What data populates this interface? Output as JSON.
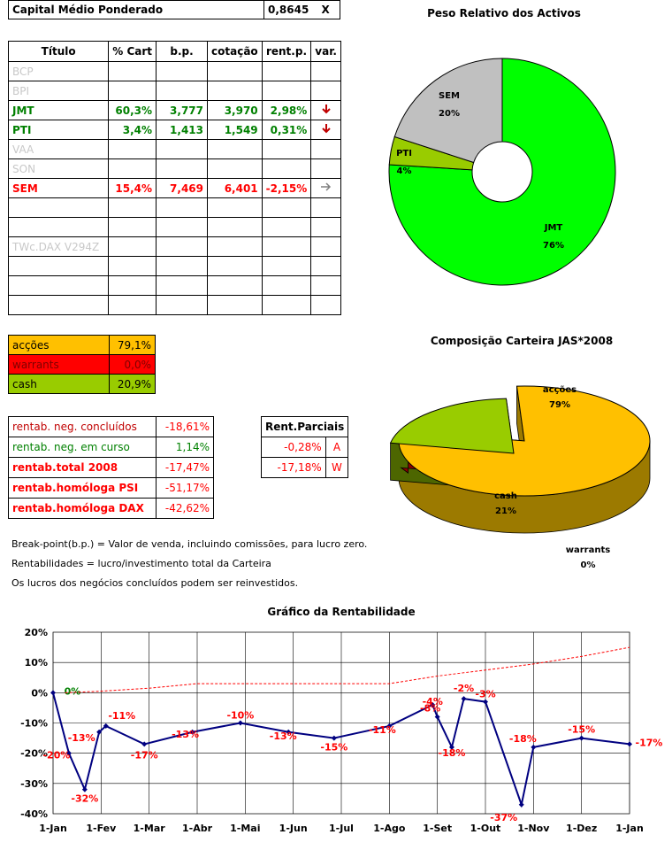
{
  "capital": {
    "label": "Capital Médio Ponderado",
    "value": "0,8645",
    "unit": "X"
  },
  "holdings": {
    "headers": [
      "Título",
      "% Cart",
      "b.p.",
      "cotação",
      "rent.p.",
      "var."
    ],
    "rows": [
      {
        "name": "BCP",
        "style": "grey",
        "cart": "",
        "bp": "",
        "cot": "",
        "rent": "",
        "var": ""
      },
      {
        "name": "BPI",
        "style": "grey",
        "cart": "",
        "bp": "",
        "cot": "",
        "rent": "",
        "var": ""
      },
      {
        "name": "JMT",
        "style": "green",
        "cart": "60,3%",
        "bp": "3,777",
        "cot": "3,970",
        "rent": "2,98%",
        "var": "down"
      },
      {
        "name": "PTI",
        "style": "green",
        "cart": "3,4%",
        "bp": "1,413",
        "cot": "1,549",
        "rent": "0,31%",
        "var": "down"
      },
      {
        "name": "VAA",
        "style": "grey",
        "cart": "",
        "bp": "",
        "cot": "",
        "rent": "",
        "var": ""
      },
      {
        "name": "SON",
        "style": "grey",
        "cart": "",
        "bp": "",
        "cot": "",
        "rent": "",
        "var": ""
      },
      {
        "name": "SEM",
        "style": "red",
        "cart": "15,4%",
        "bp": "7,469",
        "cot": "6,401",
        "rent": "-2,15%",
        "var": "right"
      },
      {
        "name": "",
        "style": "grey",
        "cart": "",
        "bp": "",
        "cot": "",
        "rent": "",
        "var": ""
      },
      {
        "name": "",
        "style": "grey",
        "cart": "",
        "bp": "",
        "cot": "",
        "rent": "",
        "var": ""
      },
      {
        "name": "TWc.DAX V294Z",
        "style": "grey",
        "cart": "",
        "bp": "",
        "cot": "",
        "rent": "",
        "var": ""
      },
      {
        "name": "",
        "style": "grey",
        "cart": "",
        "bp": "",
        "cot": "",
        "rent": "",
        "var": ""
      },
      {
        "name": "",
        "style": "grey",
        "cart": "",
        "bp": "",
        "cot": "",
        "rent": "",
        "var": ""
      },
      {
        "name": "",
        "style": "grey",
        "cart": "",
        "bp": "",
        "cot": "",
        "rent": "",
        "var": ""
      }
    ]
  },
  "composition": [
    {
      "label": "acções",
      "value": "79,1%",
      "bg": "#ffc000",
      "fg": "#000000"
    },
    {
      "label": "warrants",
      "value": "0,0%",
      "bg": "#ff0000",
      "fg": "#800000"
    },
    {
      "label": "cash",
      "value": "20,9%",
      "bg": "#99cc00",
      "fg": "#000000"
    }
  ],
  "returns": [
    {
      "label": "rentab. neg. concluídos",
      "value": "-18,61%",
      "label_color": "#c00000",
      "value_color": "#ff0000",
      "bold": false
    },
    {
      "label": "rentab. neg. em curso",
      "value": "1,14%",
      "label_color": "#008000",
      "value_color": "#008000",
      "bold": false
    },
    {
      "label": "rentab.total 2008",
      "value": "-17,47%",
      "label_color": "#ff0000",
      "value_color": "#ff0000",
      "bold": true
    },
    {
      "label": "rentab.homóloga PSI",
      "value": "-51,17%",
      "label_color": "#ff0000",
      "value_color": "#ff0000",
      "bold": true
    },
    {
      "label": "rentab.homóloga DAX",
      "value": "-42,62%",
      "label_color": "#ff0000",
      "value_color": "#ff0000",
      "bold": true
    }
  ],
  "partial": {
    "header": "Rent.Parciais",
    "rows": [
      {
        "value": "-0,28%",
        "code": "A"
      },
      {
        "value": "-17,18%",
        "code": "W"
      }
    ]
  },
  "notes": [
    "Break-point(b.p.) = Valor de venda, incluindo comissões, para lucro zero.",
    "Rentabilidades = lucro/investimento total da Carteira",
    "Os lucros dos negócios concluídos podem ser reinvestidos."
  ],
  "chart_data": [
    {
      "type": "pie",
      "style": "doughnut",
      "title": "Peso Relativo dos Activos",
      "labels": [
        "JMT",
        "PTI",
        "SEM"
      ],
      "values": [
        76,
        4,
        20
      ],
      "value_labels": [
        "76%",
        "4%",
        "20%"
      ],
      "colors": [
        "#00ff00",
        "#99cc00",
        "#c0c0c0"
      ]
    },
    {
      "type": "pie",
      "style": "3d",
      "title": "Composição Carteira JAS*2008",
      "labels": [
        "acções",
        "warrants",
        "cash"
      ],
      "values": [
        79,
        0,
        21
      ],
      "value_labels": [
        "79%",
        "0%",
        "21%"
      ],
      "colors": [
        "#ffc000",
        "#ff0000",
        "#99cc00"
      ]
    },
    {
      "type": "line",
      "title": "Gráfico da Rentabilidade",
      "ylim": [
        -40,
        20
      ],
      "yticks": [
        "20%",
        "10%",
        "0%",
        "-10%",
        "-20%",
        "-30%",
        "-40%"
      ],
      "xticks": [
        "1-Jan",
        "1-Fev",
        "1-Mar",
        "1-Abr",
        "1-Mai",
        "1-Jun",
        "1-Jul",
        "1-Ago",
        "1-Set",
        "1-Out",
        "1-Nov",
        "1-Dez",
        "1-Jan"
      ],
      "grid": true,
      "series": [
        {
          "color": "#000080",
          "points": [
            {
              "x": 0.0,
              "y": 0,
              "label": "0%"
            },
            {
              "x": 0.33,
              "y": -20,
              "label": "-20%"
            },
            {
              "x": 0.66,
              "y": -32,
              "label": "-32%"
            },
            {
              "x": 0.96,
              "y": -13,
              "label": "-13%"
            },
            {
              "x": 1.1,
              "y": -11,
              "label": "-11%"
            },
            {
              "x": 1.9,
              "y": -17,
              "label": "-17%"
            },
            {
              "x": 2.9,
              "y": -13,
              "label": "-13%"
            },
            {
              "x": 3.9,
              "y": -10,
              "label": "-10%"
            },
            {
              "x": 4.9,
              "y": -13,
              "label": "-13%"
            },
            {
              "x": 5.85,
              "y": -15,
              "label": "-15%"
            },
            {
              "x": 7.0,
              "y": -11,
              "label": "-11%"
            },
            {
              "x": 7.9,
              "y": -4,
              "label": "-4%"
            },
            {
              "x": 8.0,
              "y": -8,
              "label": "-8%"
            },
            {
              "x": 8.3,
              "y": -18,
              "label": "-18%"
            },
            {
              "x": 8.55,
              "y": -2,
              "label": "-2%"
            },
            {
              "x": 9.0,
              "y": -3,
              "label": "-3%"
            },
            {
              "x": 9.75,
              "y": -37,
              "label": "-37%"
            },
            {
              "x": 10.0,
              "y": -18,
              "label": "-18%"
            },
            {
              "x": 11.0,
              "y": -15,
              "label": "-15%"
            },
            {
              "x": 12.0,
              "y": -17,
              "label": "-17%"
            }
          ]
        },
        {
          "color": "#ff0000",
          "dashed": true,
          "points": [
            {
              "x": 0.25,
              "y": 0
            },
            {
              "x": 1.0,
              "y": 0.5
            },
            {
              "x": 2.0,
              "y": 1.5
            },
            {
              "x": 3.0,
              "y": 3
            },
            {
              "x": 4.0,
              "y": 3
            },
            {
              "x": 5.0,
              "y": 3
            },
            {
              "x": 6.0,
              "y": 3
            },
            {
              "x": 7.0,
              "y": 3
            },
            {
              "x": 8.0,
              "y": 5.5
            },
            {
              "x": 9.0,
              "y": 7.5
            },
            {
              "x": 10.0,
              "y": 9.5
            },
            {
              "x": 11.0,
              "y": 12
            },
            {
              "x": 12.0,
              "y": 15
            }
          ]
        }
      ]
    }
  ]
}
